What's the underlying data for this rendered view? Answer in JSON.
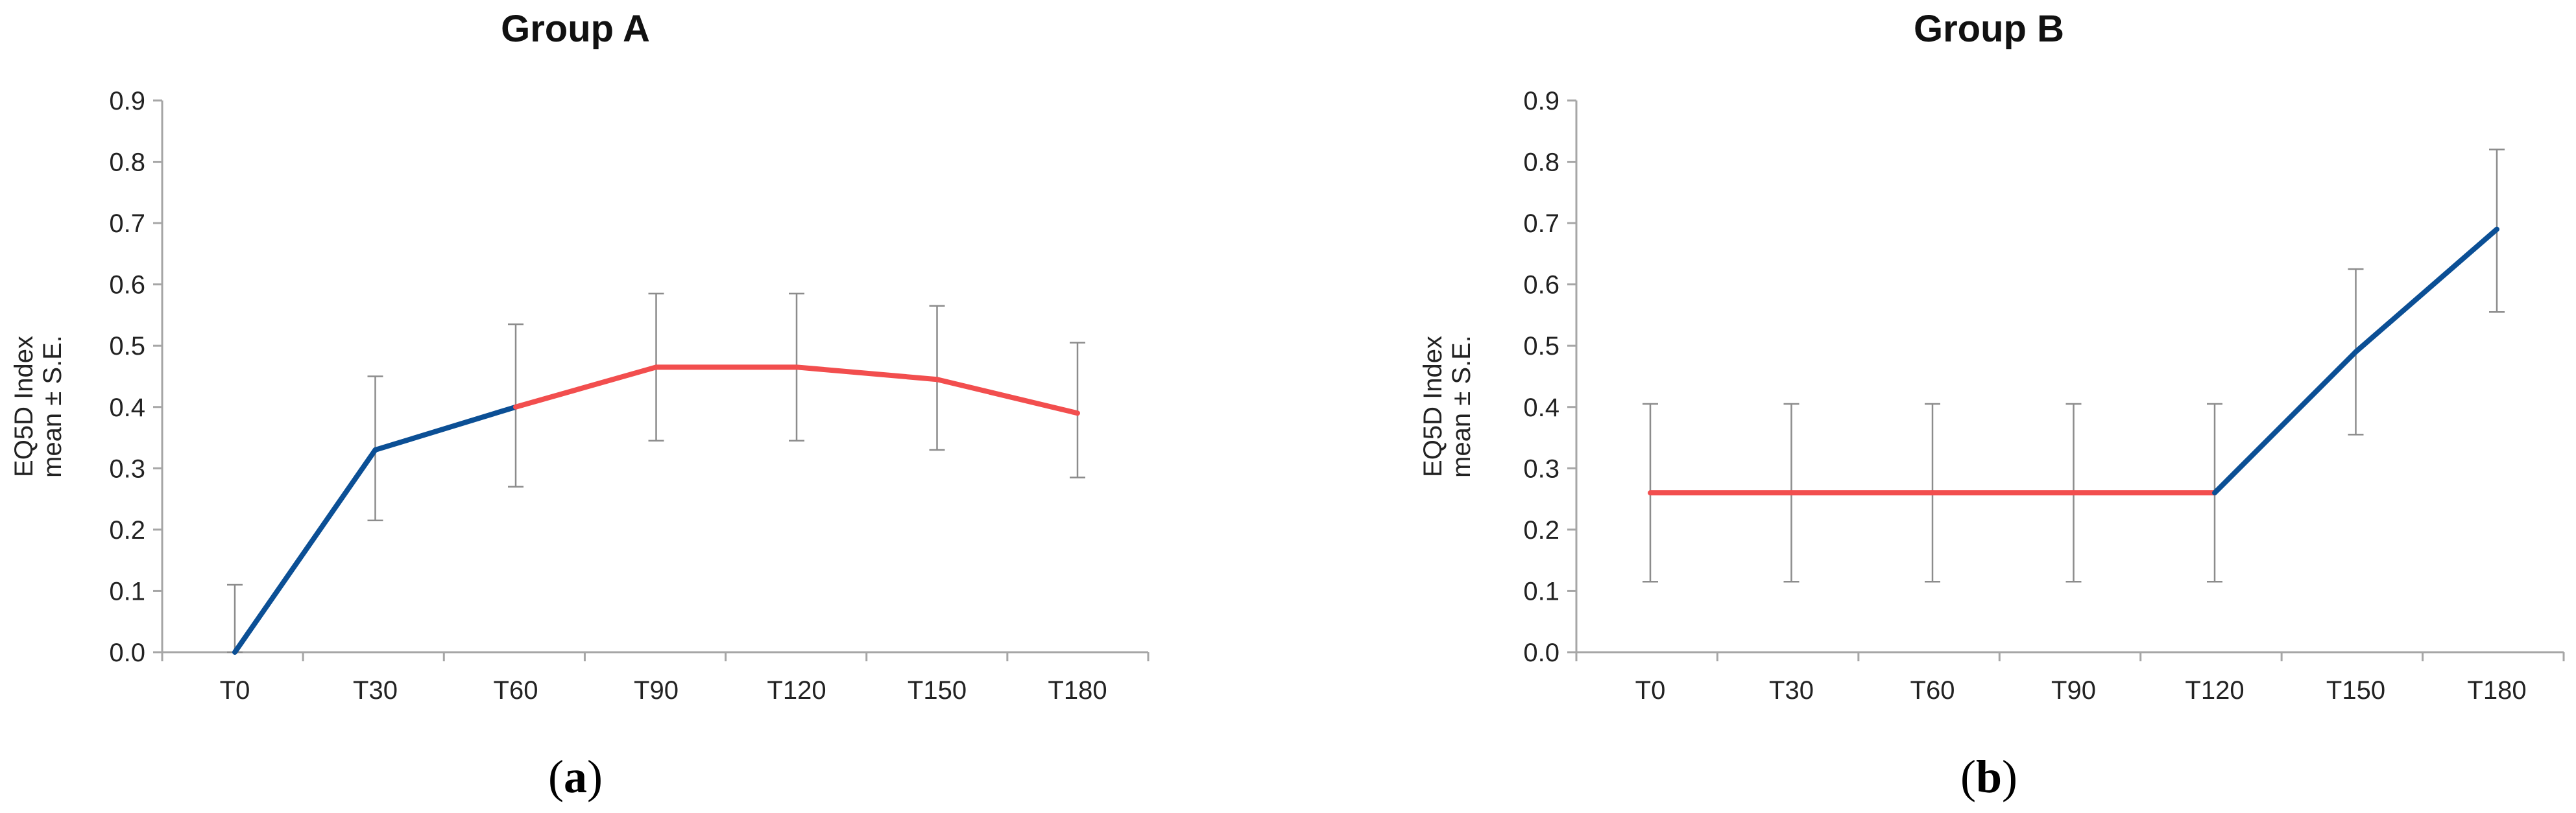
{
  "colors": {
    "blue": "#0B4F95",
    "red": "#F24E4E",
    "errorbar": "#8C8C8C",
    "axis": "#A6A6A6"
  },
  "chart_data": [
    {
      "type": "line",
      "title": "Group A",
      "panel_label": {
        "open": "(",
        "letter": "a",
        "close": ")"
      },
      "ylabel": [
        "EQ5D Index",
        "mean ± S.E."
      ],
      "xlabel": "",
      "categories": [
        "T0",
        "T30",
        "T60",
        "T90",
        "T120",
        "T150",
        "T180"
      ],
      "values": [
        0.0,
        0.33,
        0.4,
        0.465,
        0.465,
        0.445,
        0.39
      ],
      "error_upper": [
        0.11,
        0.45,
        0.535,
        0.585,
        0.585,
        0.565,
        0.505
      ],
      "error_lower": [
        0.0,
        0.215,
        0.27,
        0.345,
        0.345,
        0.33,
        0.285
      ],
      "segment_colors": [
        "blue",
        "blue",
        "red",
        "red",
        "red",
        "red"
      ],
      "ylim": [
        0,
        0.9
      ],
      "yticks": [
        "0.0",
        "0.1",
        "0.2",
        "0.3",
        "0.4",
        "0.5",
        "0.6",
        "0.7",
        "0.8",
        "0.9"
      ],
      "grid": false,
      "legend": "none"
    },
    {
      "type": "line",
      "title": "Group B",
      "panel_label": {
        "open": "(",
        "letter": "b",
        "close": ")"
      },
      "ylabel": [
        "EQ5D Index",
        "mean ± S.E."
      ],
      "xlabel": "",
      "categories": [
        "T0",
        "T30",
        "T60",
        "T90",
        "T120",
        "T150",
        "T180"
      ],
      "values": [
        0.26,
        0.26,
        0.26,
        0.26,
        0.26,
        0.49,
        0.69
      ],
      "error_upper": [
        0.405,
        0.405,
        0.405,
        0.405,
        0.405,
        0.625,
        0.82
      ],
      "error_lower": [
        0.115,
        0.115,
        0.115,
        0.115,
        0.115,
        0.355,
        0.555
      ],
      "segment_colors": [
        "red",
        "red",
        "red",
        "red",
        "blue",
        "blue"
      ],
      "ylim": [
        0,
        0.9
      ],
      "yticks": [
        "0.0",
        "0.1",
        "0.2",
        "0.3",
        "0.4",
        "0.5",
        "0.6",
        "0.7",
        "0.8",
        "0.9"
      ],
      "grid": false,
      "legend": "none"
    }
  ]
}
